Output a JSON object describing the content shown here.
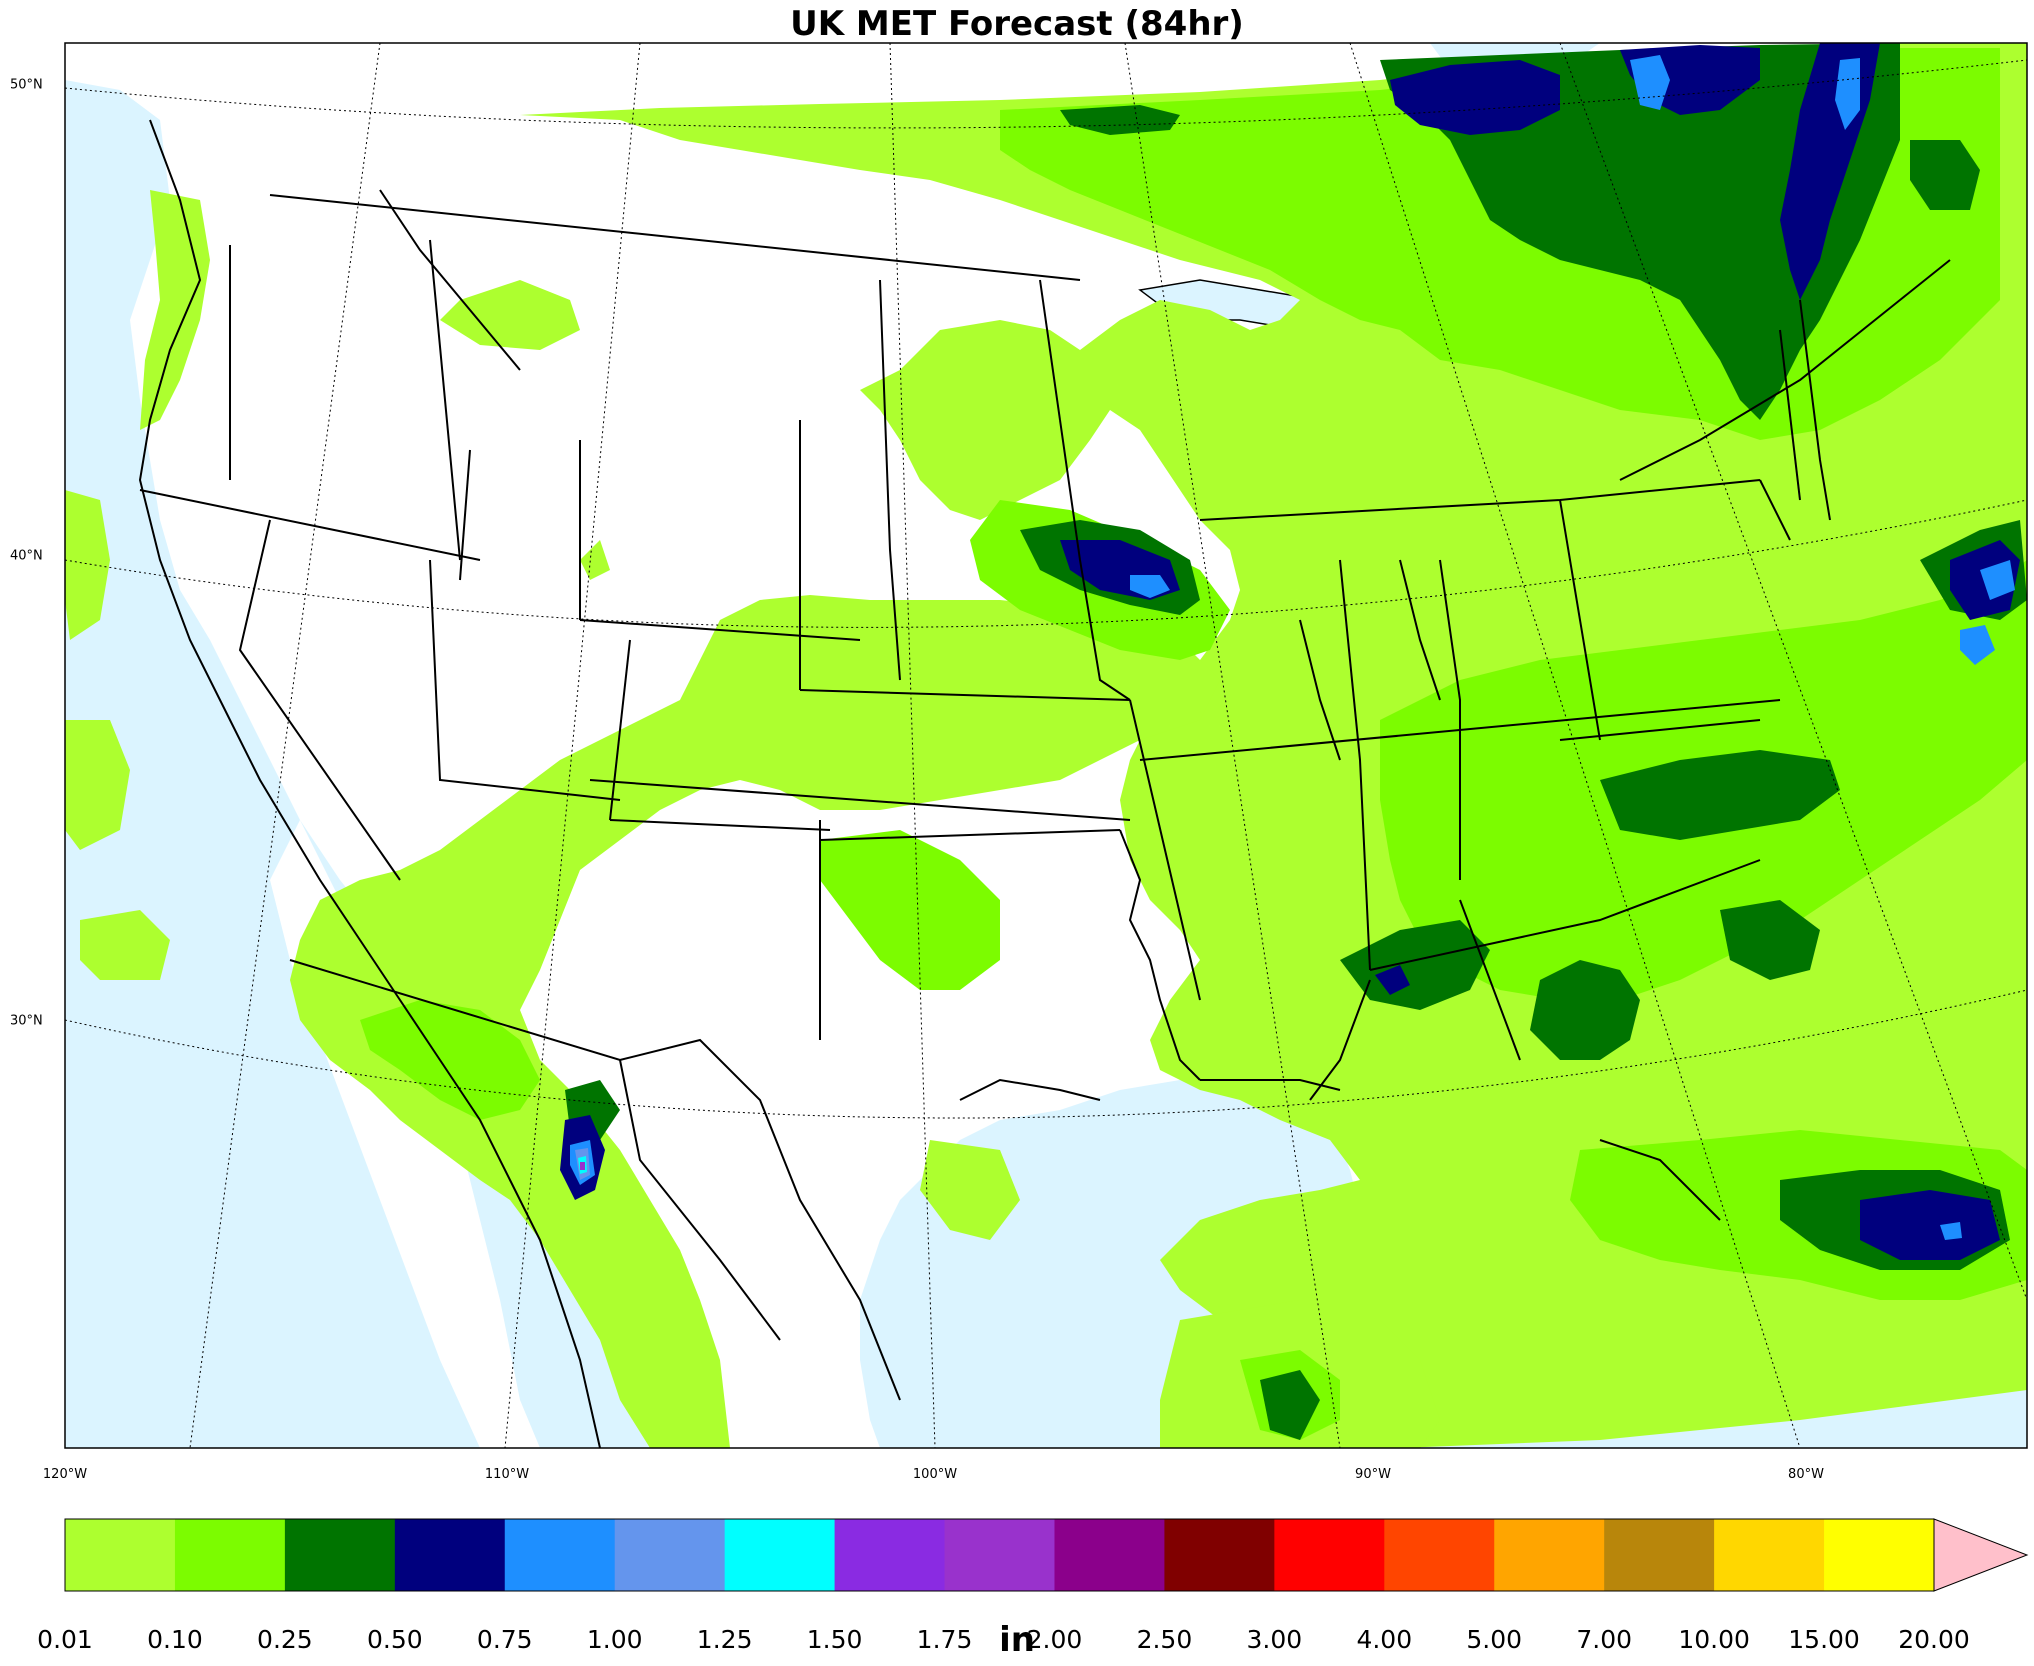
{
  "title": "UK MET Forecast (84hr)",
  "units": "in",
  "longitude_labels": [
    "120°W",
    "110°W",
    "100°W",
    "90°W",
    "80°W"
  ],
  "latitude_labels": [
    "50°N",
    "40°N",
    "30°N"
  ],
  "colorbar": {
    "ticks": [
      "0.01",
      "0.10",
      "0.25",
      "0.50",
      "0.75",
      "1.00",
      "1.25",
      "1.50",
      "1.75",
      "2.00",
      "2.50",
      "3.00",
      "4.00",
      "5.00",
      "7.00",
      "10.00",
      "15.00",
      "20.00"
    ],
    "colors": [
      "#adff2f",
      "#7cfc00",
      "#007400",
      "#00007e",
      "#1e8fff",
      "#6495ed",
      "#00ffff",
      "#8a2be2",
      "#9932cc",
      "#8b008b",
      "#800000",
      "#ff0000",
      "#ff4500",
      "#ffa500",
      "#b8860b",
      "#ffd700",
      "#ffff00"
    ],
    "extend_color": "#ffc0cb"
  },
  "map_colors": {
    "ocean": "#dbf4ff",
    "land": "#ffffff",
    "lakes": "#dbf4ff"
  }
}
